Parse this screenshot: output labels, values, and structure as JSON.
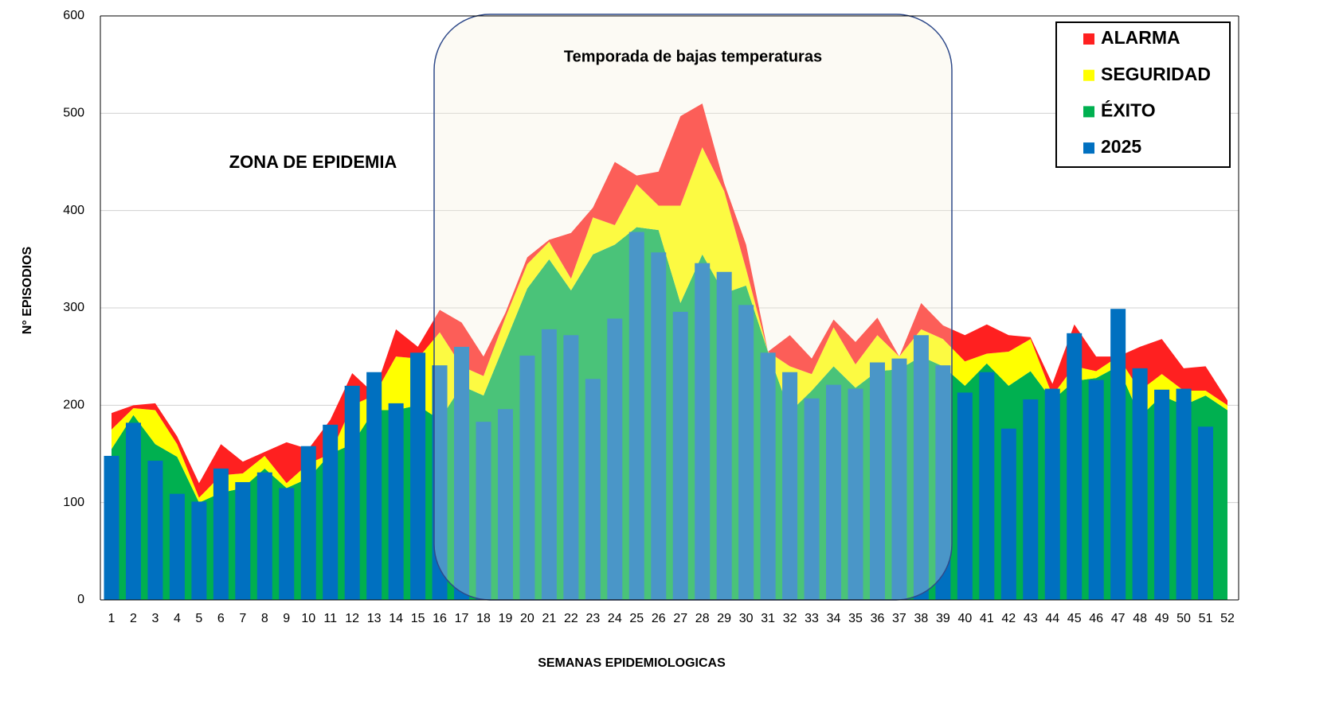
{
  "chart_data": {
    "type": "bar",
    "x_label": "SEMANAS EPIDEMIOLOGICAS",
    "y_label": "N° EPISODIOS",
    "annotations": [
      "ZONA DE EPIDEMIA",
      "Temporada de bajas temperaturas"
    ],
    "categories": [
      "1",
      "2",
      "3",
      "4",
      "5",
      "6",
      "7",
      "8",
      "9",
      "10",
      "11",
      "12",
      "13",
      "14",
      "15",
      "16",
      "17",
      "18",
      "19",
      "20",
      "21",
      "22",
      "23",
      "24",
      "25",
      "26",
      "27",
      "28",
      "29",
      "30",
      "31",
      "32",
      "33",
      "34",
      "35",
      "36",
      "37",
      "38",
      "39",
      "40",
      "41",
      "42",
      "43",
      "44",
      "45",
      "46",
      "47",
      "48",
      "49",
      "50",
      "51",
      "52"
    ],
    "series": [
      {
        "name": "ÉXITO",
        "type": "area",
        "stacked": true,
        "color": "#00b050",
        "values": [
          155,
          190,
          160,
          147,
          100,
          110,
          115,
          135,
          115,
          125,
          150,
          160,
          195,
          195,
          200,
          185,
          220,
          210,
          265,
          320,
          350,
          318,
          355,
          365,
          383,
          380,
          305,
          355,
          315,
          323,
          255,
          193,
          215,
          240,
          218,
          235,
          237,
          250,
          240,
          220,
          243,
          220,
          235,
          205,
          225,
          228,
          240,
          188,
          210,
          200,
          210,
          195
        ]
      },
      {
        "name": "SEGURIDAD",
        "type": "area",
        "stacked": true,
        "color": "#ffff00",
        "values": [
          20,
          7,
          35,
          13,
          5,
          18,
          15,
          13,
          5,
          15,
          0,
          40,
          15,
          55,
          48,
          90,
          20,
          20,
          25,
          25,
          18,
          12,
          38,
          20,
          44,
          25,
          100,
          110,
          105,
          17,
          0,
          47,
          17,
          40,
          24,
          37,
          13,
          28,
          28,
          25,
          10,
          35,
          33,
          5,
          15,
          7,
          10,
          27,
          22,
          15,
          5,
          5
        ]
      },
      {
        "name": "ALARMA",
        "type": "area",
        "stacked": true,
        "color": "#ff2020",
        "values": [
          17,
          3,
          7,
          8,
          15,
          32,
          12,
          4,
          42,
          15,
          35,
          33,
          2,
          28,
          12,
          23,
          45,
          20,
          5,
          7,
          2,
          47,
          10,
          65,
          9,
          35,
          92,
          45,
          8,
          25,
          0,
          32,
          16,
          8,
          23,
          18,
          0,
          27,
          14,
          27,
          30,
          17,
          2,
          12,
          43,
          15,
          0,
          45,
          36,
          23,
          25,
          5
        ]
      },
      {
        "name": "2025",
        "type": "bar",
        "color": "#0070c0",
        "values": [
          148,
          182,
          143,
          109,
          101,
          135,
          121,
          131,
          115,
          158,
          180,
          220,
          234,
          202,
          254,
          241,
          260,
          183,
          196,
          251,
          278,
          272,
          227,
          289,
          378,
          357,
          296,
          346,
          337,
          303,
          254,
          234,
          207,
          221,
          217,
          244,
          248,
          272,
          241,
          213,
          234,
          176,
          206,
          217,
          274,
          226,
          299,
          238,
          216,
          217,
          178,
          null
        ]
      }
    ],
    "ylim": [
      0,
      600
    ],
    "yticks": [
      0,
      100,
      200,
      300,
      400,
      500,
      600
    ],
    "grid": true,
    "legend": "top-right"
  }
}
